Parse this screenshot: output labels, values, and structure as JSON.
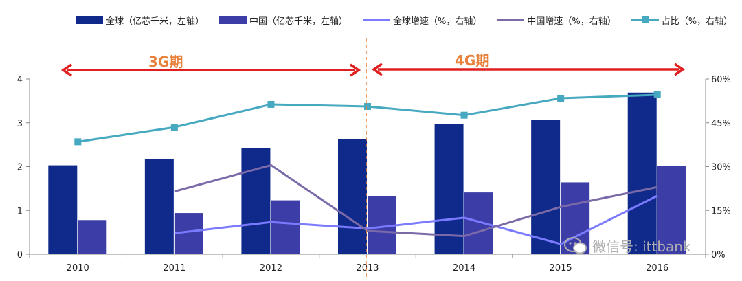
{
  "legend": [
    {
      "label": "全球（亿芯千米，左轴）",
      "kind": "bar",
      "color": "#102a8c"
    },
    {
      "label": "中国（亿芯千米，左轴）",
      "kind": "bar",
      "color": "#3d3da8"
    },
    {
      "label": "全球增速（%，右轴）",
      "kind": "line",
      "color": "#7b7bff"
    },
    {
      "label": "中国增速（%，右轴）",
      "kind": "line",
      "color": "#7a6aa8"
    },
    {
      "label": "占比（%，右轴）",
      "kind": "line-marker",
      "color": "#46a9c0"
    }
  ],
  "periods": {
    "p3g": "3G期",
    "p4g": "4G期"
  },
  "watermark": "微信号: ittbank",
  "colors": {
    "global_bar": "#102a8c",
    "china_bar": "#3d3da8",
    "global_growth": "#7b7bff",
    "china_growth": "#7a6aa8",
    "share": "#46a9c0",
    "arrow": "#e02020",
    "divider": "#e8803a",
    "axis": "#888888"
  },
  "chart_data": {
    "type": "bar+line",
    "categories": [
      "2010",
      "2011",
      "2012",
      "2013",
      "2014",
      "2015",
      "2016"
    ],
    "left_axis": {
      "min": 0,
      "max": 4,
      "ticks": [
        "0",
        "1",
        "2",
        "3",
        "4"
      ]
    },
    "right_axis": {
      "min": 0,
      "max": 60,
      "ticks": [
        "0%",
        "15%",
        "30%",
        "45%",
        "60%"
      ]
    },
    "series": [
      {
        "name": "全球（亿芯千米，左轴）",
        "type": "bar",
        "axis": "left",
        "values": [
          2.03,
          2.18,
          2.42,
          2.63,
          2.97,
          3.07,
          3.69
        ]
      },
      {
        "name": "中国（亿芯千米，左轴）",
        "type": "bar",
        "axis": "left",
        "values": [
          0.78,
          0.94,
          1.23,
          1.33,
          1.41,
          1.64,
          2.01
        ]
      },
      {
        "name": "全球增速（%，右轴）",
        "type": "line",
        "axis": "right",
        "values": [
          null,
          7.2,
          11.0,
          8.8,
          12.5,
          3.5,
          20.0
        ]
      },
      {
        "name": "中国增速（%，右轴）",
        "type": "line",
        "axis": "right",
        "values": [
          null,
          21.5,
          30.5,
          8.0,
          6.2,
          16.2,
          23.0
        ]
      },
      {
        "name": "占比（%，右轴）",
        "type": "line",
        "axis": "right",
        "marker": "square",
        "values": [
          38.5,
          43.5,
          51.3,
          50.6,
          47.6,
          53.4,
          54.6
        ]
      }
    ],
    "divider_after": "2013",
    "legend_position": "top"
  }
}
